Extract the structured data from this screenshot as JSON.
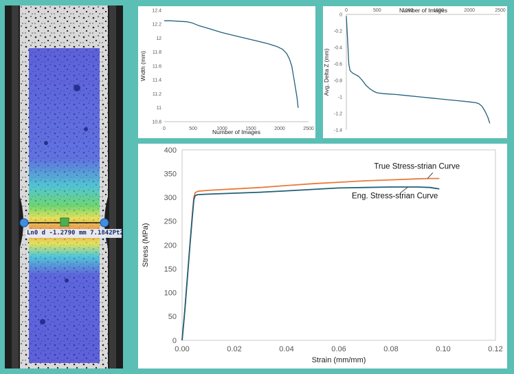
{
  "specimen": {
    "measurement_label": "Ln0 d -1.2790 mm 7.1842Pt2"
  },
  "colors": {
    "frame": "#5bbfb5",
    "series_line": "#1f5f7a",
    "true_curve": "#e97a3a",
    "eng_curve": "#1f5f7a"
  },
  "chart_data": [
    {
      "type": "line",
      "xlabel": "Number of Images",
      "ylabel": "Width (mm)",
      "xlim": [
        0,
        2500
      ],
      "ylim": [
        10.8,
        12.4
      ],
      "xticks": [
        0,
        500,
        1000,
        1500,
        2000,
        2500
      ],
      "yticks": [
        10.8,
        11,
        11.2,
        11.4,
        11.6,
        11.8,
        12,
        12.2,
        12.4
      ],
      "grid": false,
      "series": [
        {
          "x": [
            0,
            100,
            200,
            300,
            400,
            480,
            600,
            800,
            1000,
            1200,
            1400,
            1600,
            1800,
            1950,
            2050,
            2120,
            2170,
            2210,
            2240,
            2270,
            2300,
            2320
          ],
          "values": [
            12.25,
            12.25,
            12.245,
            12.24,
            12.235,
            12.22,
            12.18,
            12.13,
            12.08,
            12.04,
            12.0,
            11.96,
            11.92,
            11.88,
            11.84,
            11.78,
            11.7,
            11.6,
            11.45,
            11.3,
            11.15,
            11.0
          ]
        }
      ]
    },
    {
      "type": "line",
      "xlabel": "Number of Images",
      "ylabel": "Avg. Delta Z (mm)",
      "xlim": [
        0,
        2500
      ],
      "ylim": [
        -1.4,
        0
      ],
      "xticks": [
        0,
        500,
        1000,
        1500,
        2000,
        2500
      ],
      "yticks": [
        0,
        -0.2,
        -0.4,
        -0.6,
        -0.8,
        -1,
        -1.2,
        -1.4
      ],
      "x_axis_position": "top",
      "grid": false,
      "series": [
        {
          "x": [
            0,
            20,
            40,
            60,
            100,
            150,
            200,
            260,
            320,
            380,
            440,
            500,
            600,
            700,
            800,
            1000,
            1200,
            1400,
            1600,
            1800,
            2000,
            2100,
            2150,
            2200,
            2250,
            2300,
            2330
          ],
          "values": [
            -0.02,
            -0.3,
            -0.6,
            -0.68,
            -0.71,
            -0.73,
            -0.75,
            -0.8,
            -0.86,
            -0.9,
            -0.93,
            -0.95,
            -0.96,
            -0.965,
            -0.97,
            -0.985,
            -1.0,
            -1.015,
            -1.03,
            -1.045,
            -1.06,
            -1.07,
            -1.08,
            -1.11,
            -1.17,
            -1.25,
            -1.32
          ]
        }
      ]
    },
    {
      "type": "line",
      "xlabel": "Strain (mm/mm)",
      "ylabel": "Stress (MPa)",
      "xlim": [
        0,
        0.12
      ],
      "ylim": [
        0,
        400
      ],
      "xticks": [
        "0.00",
        "0.02",
        "0.04",
        "0.06",
        "0.08",
        "0.10",
        "0.12"
      ],
      "yticks": [
        0,
        50,
        100,
        150,
        200,
        250,
        300,
        350,
        400
      ],
      "grid": false,
      "series": [
        {
          "name": "True Stress-strian Curve",
          "x": [
            0,
            0.001,
            0.002,
            0.003,
            0.004,
            0.0045,
            0.005,
            0.006,
            0.01,
            0.02,
            0.03,
            0.04,
            0.05,
            0.06,
            0.07,
            0.08,
            0.09,
            0.095,
            0.0985
          ],
          "values": [
            0,
            60,
            130,
            200,
            270,
            300,
            310,
            313,
            315,
            318,
            321,
            325,
            329,
            332,
            335,
            337,
            339,
            340,
            340
          ]
        },
        {
          "name": "Eng. Stress-strian Curve",
          "x": [
            0,
            0.001,
            0.002,
            0.003,
            0.004,
            0.0045,
            0.005,
            0.006,
            0.01,
            0.02,
            0.03,
            0.04,
            0.05,
            0.06,
            0.07,
            0.08,
            0.09,
            0.095,
            0.0985
          ],
          "values": [
            0,
            60,
            130,
            200,
            265,
            295,
            304,
            306,
            307,
            309,
            311,
            314,
            317,
            320,
            321,
            322,
            322,
            321,
            318
          ]
        }
      ]
    }
  ]
}
